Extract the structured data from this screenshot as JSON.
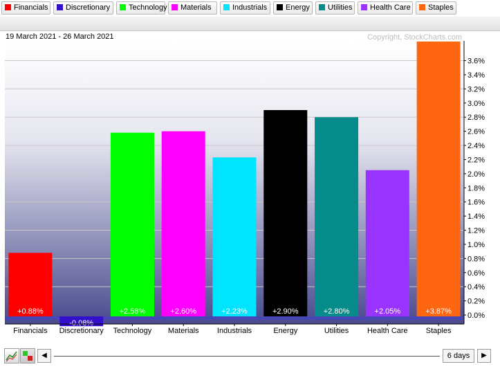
{
  "legend": {
    "items": [
      {
        "label": "Financials",
        "color": "#ff0000"
      },
      {
        "label": "Discretionary",
        "color": "#3311cc"
      },
      {
        "label": "Technology",
        "color": "#00ff00"
      },
      {
        "label": "Materials",
        "color": "#ff00ff"
      },
      {
        "label": "Industrials",
        "color": "#00e5ff"
      },
      {
        "label": "Energy",
        "color": "#000000"
      },
      {
        "label": "Utilities",
        "color": "#068b8b"
      },
      {
        "label": "Health Care",
        "color": "#9933ff"
      },
      {
        "label": "Staples",
        "color": "#ff6611"
      }
    ]
  },
  "chart_data": {
    "type": "bar",
    "title": "19 March 2021 - 26 March 2021",
    "copyright": "Copyright, StockCharts.com",
    "categories": [
      "Financials",
      "Discretionary",
      "Technology",
      "Materials",
      "Industrials",
      "Energy",
      "Utilities",
      "Health Care",
      "Staples"
    ],
    "values": [
      0.88,
      -0.08,
      2.58,
      2.6,
      2.23,
      2.9,
      2.8,
      2.05,
      3.87
    ],
    "value_labels": [
      "+0.88%",
      "-0.08%",
      "+2.58%",
      "+2.60%",
      "+2.23%",
      "+2.90%",
      "+2.80%",
      "+2.05%",
      "+3.87%"
    ],
    "colors": [
      "#ff0000",
      "#3311cc",
      "#00ff00",
      "#ff00ff",
      "#00e5ff",
      "#000000",
      "#068b8b",
      "#9933ff",
      "#ff6611"
    ],
    "ylim": [
      0,
      3.87
    ],
    "yticks": [
      0.0,
      0.2,
      0.4,
      0.6,
      0.8,
      1.0,
      1.2,
      1.4,
      1.6,
      1.8,
      2.0,
      2.2,
      2.4,
      2.6,
      2.8,
      3.0,
      3.2,
      3.4,
      3.6
    ],
    "ytick_labels": [
      "0.0%",
      "0.2%",
      "0.4%",
      "0.6%",
      "0.8%",
      "1.0%",
      "1.2%",
      "1.4%",
      "1.6%",
      "1.8%",
      "2.0%",
      "2.2%",
      "2.4%",
      "2.6%",
      "2.8%",
      "3.0%",
      "3.2%",
      "3.4%",
      "3.6%"
    ],
    "ytick_label_every": 1,
    "gridline_every": 2,
    "xlabel": "",
    "ylabel": "",
    "grid": true,
    "axis_side": "right",
    "background": "gradient white to slate blue"
  },
  "controls": {
    "prev_label": "◀",
    "next_label": "▶",
    "range_label": "6 days"
  }
}
